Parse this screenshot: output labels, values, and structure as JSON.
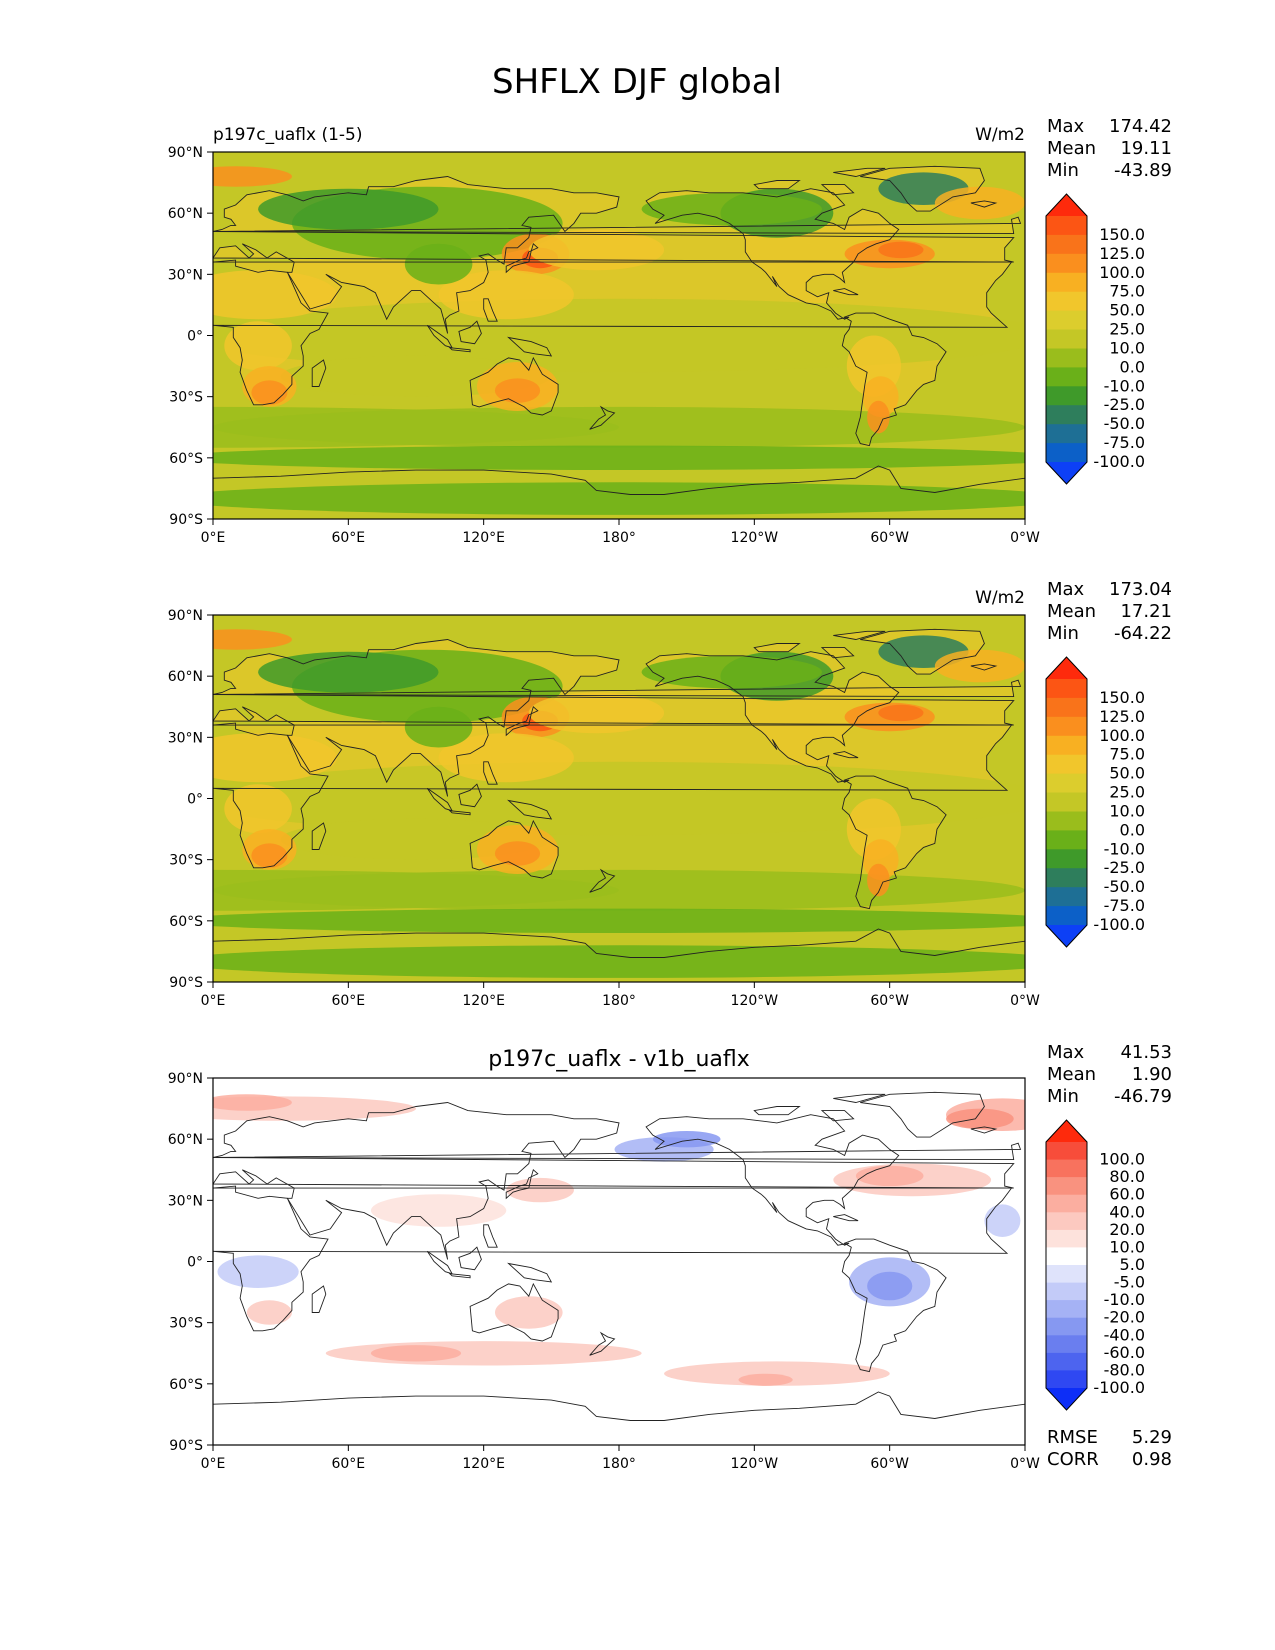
{
  "title": "SHFLX DJF global",
  "lat_ticks": [
    "90°N",
    "60°N",
    "30°N",
    "0°",
    "30°S",
    "60°S",
    "90°S"
  ],
  "lon_ticks": [
    "0°E",
    "60°E",
    "120°E",
    "180°",
    "120°W",
    "60°W",
    "0°W"
  ],
  "panels": [
    {
      "id": "test",
      "left_title": "p197c_uaflx (1-5)",
      "center_title": "",
      "units": "W/m2",
      "stats": [
        [
          "Max",
          "174.42"
        ],
        [
          "Mean",
          "19.11"
        ],
        [
          "Min",
          "-43.89"
        ]
      ],
      "colorbar_labels": [
        "150.0",
        "125.0",
        "100.0",
        "75.0",
        "50.0",
        "25.0",
        "10.0",
        "0.0",
        "-10.0",
        "-25.0",
        "-50.0",
        "-75.0",
        "-100.0"
      ],
      "colorbar_colors": [
        "#fe2a0c",
        "#fc5514",
        "#f9731a",
        "#fa8f1e",
        "#f8b022",
        "#f1c62c",
        "#dccd2d",
        "#c4c726",
        "#9abd1c",
        "#6ab019",
        "#3f9a2a",
        "#2e7e5c",
        "#1e6f95",
        "#0c60c8",
        "#0d40f6"
      ]
    },
    {
      "id": "reference",
      "left_title": "",
      "center_title": "",
      "units": "W/m2",
      "stats": [
        [
          "Max",
          "173.04"
        ],
        [
          "Mean",
          "17.21"
        ],
        [
          "Min",
          "-64.22"
        ]
      ],
      "colorbar_labels": [
        "150.0",
        "125.0",
        "100.0",
        "75.0",
        "50.0",
        "25.0",
        "10.0",
        "0.0",
        "-10.0",
        "-25.0",
        "-50.0",
        "-75.0",
        "-100.0"
      ],
      "colorbar_colors": [
        "#fe2a0c",
        "#fc5514",
        "#f9731a",
        "#fa8f1e",
        "#f8b022",
        "#f1c62c",
        "#dccd2d",
        "#c4c726",
        "#9abd1c",
        "#6ab019",
        "#3f9a2a",
        "#2e7e5c",
        "#1e6f95",
        "#0c60c8",
        "#0d40f6"
      ]
    },
    {
      "id": "difference",
      "left_title": "",
      "center_title": "p197c_uaflx - v1b_uaflx",
      "units": "",
      "stats": [
        [
          "Max",
          "41.53"
        ],
        [
          "Mean",
          "1.90"
        ],
        [
          "Min",
          "-46.79"
        ]
      ],
      "colorbar_labels": [
        "100.0",
        "80.0",
        "60.0",
        "40.0",
        "20.0",
        "10.0",
        "5.0",
        "-5.0",
        "-10.0",
        "-20.0",
        "-40.0",
        "-60.0",
        "-80.0",
        "-100.0"
      ],
      "colorbar_colors": [
        "#fe2a0c",
        "#f74d3a",
        "#f8725e",
        "#f9927f",
        "#fbaea0",
        "#fcc9c0",
        "#fde2dc",
        "#ffffff",
        "#dfe3fb",
        "#c3cbf8",
        "#a5b2f5",
        "#8698f1",
        "#6a7eef",
        "#4d64ef",
        "#2f48f2",
        "#0d2ef7"
      ],
      "rmse_corr": [
        [
          "RMSE",
          "5.29"
        ],
        [
          "CORR",
          "0.98"
        ]
      ]
    }
  ],
  "chart_data": {
    "type": "map",
    "title": "SHFLX DJF global",
    "panels": [
      {
        "title": "p197c_uaflx (1-5)",
        "units": "W/m2",
        "max": 174.42,
        "mean": 19.11,
        "min": -43.89,
        "levels": [
          -100,
          -75,
          -50,
          -25,
          -10,
          0,
          10,
          25,
          50,
          75,
          100,
          125,
          150
        ]
      },
      {
        "title": "",
        "units": "W/m2",
        "max": 173.04,
        "mean": 17.21,
        "min": -64.22,
        "levels": [
          -100,
          -75,
          -50,
          -25,
          -10,
          0,
          10,
          25,
          50,
          75,
          100,
          125,
          150
        ]
      },
      {
        "title": "p197c_uaflx - v1b_uaflx",
        "units": "",
        "max": 41.53,
        "mean": 1.9,
        "min": -46.79,
        "rmse": 5.29,
        "corr": 0.98,
        "levels": [
          -100,
          -80,
          -60,
          -40,
          -20,
          -10,
          -5,
          5,
          10,
          20,
          40,
          60,
          80,
          100
        ]
      }
    ],
    "x_range": [
      0,
      360
    ],
    "y_range": [
      -90,
      90
    ]
  }
}
